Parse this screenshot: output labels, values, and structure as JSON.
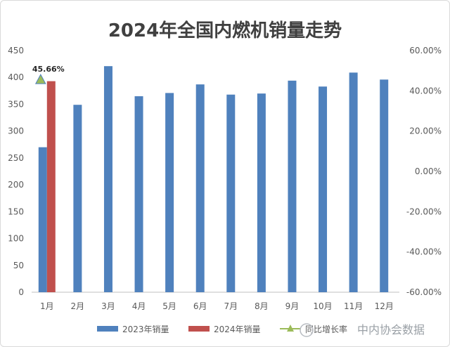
{
  "chart_data": {
    "type": "bar",
    "title": "2024年全国内燃机销量走势",
    "categories": [
      "1月",
      "2月",
      "3月",
      "4月",
      "5月",
      "6月",
      "7月",
      "8月",
      "9月",
      "10月",
      "11月",
      "12月"
    ],
    "series": [
      {
        "name": "2023年销量",
        "type": "bar",
        "axis": "left",
        "color": "#4f81bd",
        "values": [
          270,
          349,
          421,
          365,
          371,
          387,
          368,
          370,
          394,
          383,
          409,
          396
        ]
      },
      {
        "name": "2024年销量",
        "type": "bar",
        "axis": "left",
        "color": "#c0504d",
        "values": [
          393,
          null,
          null,
          null,
          null,
          null,
          null,
          null,
          null,
          null,
          null,
          null
        ]
      },
      {
        "name": "同比增长率",
        "type": "line",
        "axis": "right",
        "color": "#9bbb59",
        "values": [
          45.66,
          null,
          null,
          null,
          null,
          null,
          null,
          null,
          null,
          null,
          null,
          null
        ]
      }
    ],
    "y_left": {
      "ylim": [
        0,
        450
      ],
      "ticks": [
        "0",
        "50",
        "100",
        "150",
        "200",
        "250",
        "300",
        "350",
        "400",
        "450"
      ]
    },
    "y_right": {
      "ylim": [
        -60,
        60
      ],
      "ticks": [
        "-60.00%",
        "-40.00%",
        "-20.00%",
        "0.00%",
        "20.00%",
        "40.00%",
        "60.00%"
      ]
    },
    "annotations": [
      {
        "text": "45.66%",
        "category": "1月",
        "series": "同比增长率"
      }
    ],
    "grid": false,
    "legend_position": "bottom"
  },
  "watermark": "中内协会数据"
}
